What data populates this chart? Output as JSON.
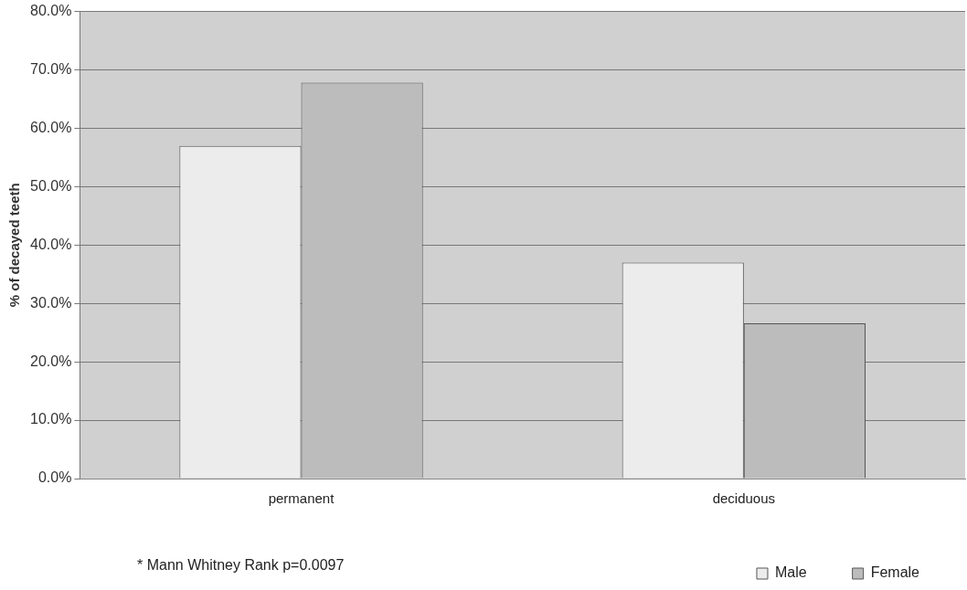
{
  "chart_data": {
    "type": "bar",
    "ylabel": "% of decayed teeth",
    "categories": [
      "permanent",
      "deciduous"
    ],
    "series": [
      {
        "name": "Male",
        "color": "#ececec",
        "values": [
          57.0,
          37.0
        ]
      },
      {
        "name": "Female",
        "color": "#bcbcbc",
        "values": [
          67.8,
          26.6
        ]
      }
    ],
    "ylim": [
      0,
      80
    ],
    "yticks": [
      {
        "value": 0,
        "label": "0.0%"
      },
      {
        "value": 10,
        "label": "10.0%"
      },
      {
        "value": 20,
        "label": "20.0%"
      },
      {
        "value": 30,
        "label": "30.0%"
      },
      {
        "value": 40,
        "label": "40.0%"
      },
      {
        "value": 50,
        "label": "50.0%"
      },
      {
        "value": 60,
        "label": "60.0%"
      },
      {
        "value": 70,
        "label": "70.0%"
      },
      {
        "value": 80,
        "label": "80.0%"
      }
    ],
    "grid": "y",
    "legend": "bottom right",
    "annotations": [
      "* Mann Whitney Rank p=0.0097"
    ]
  }
}
